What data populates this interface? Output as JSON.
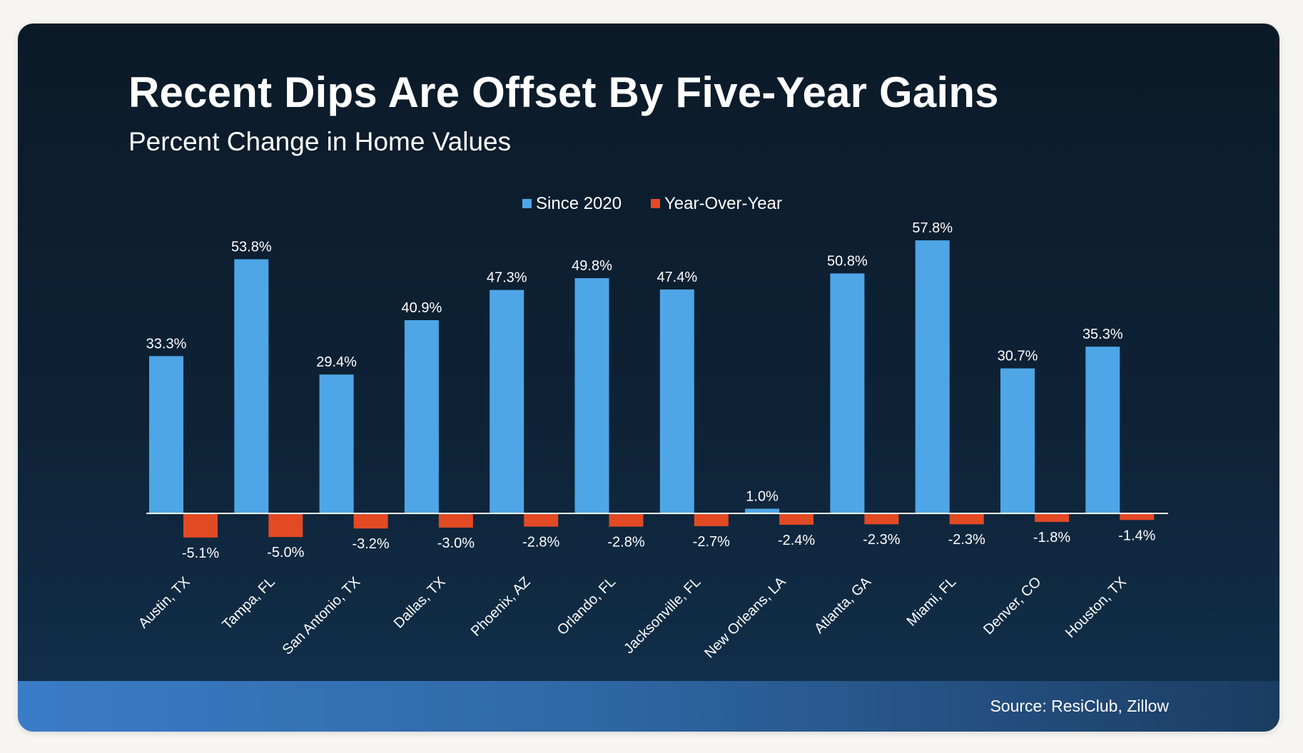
{
  "header": {
    "title": "Recent Dips Are Offset By Five-Year Gains",
    "subtitle": "Percent Change in Home Values"
  },
  "footer": {
    "source": "Source: ResiClub, Zillow"
  },
  "colors": {
    "since_2020": "#4ea6e6",
    "year_over_year": "#e24a24",
    "baseline": "#ffffff",
    "label_text": "#ffffff"
  },
  "chart_data": {
    "type": "bar",
    "title": "Recent Dips Are Offset By Five-Year Gains",
    "subtitle": "Percent Change in Home Values",
    "xlabel": "",
    "ylabel": "",
    "grid": false,
    "legend_position": "top-center",
    "categories": [
      "Austin, TX",
      "Tampa, FL",
      "San Antonio, TX",
      "Dallas, TX",
      "Phoenix, AZ",
      "Orlando, FL",
      "Jacksonville, FL",
      "New Orleans, LA",
      "Atlanta, GA",
      "Miami, FL",
      "Denver, CO",
      "Houston, TX"
    ],
    "series": [
      {
        "name": "Since 2020",
        "values": [
          33.3,
          53.8,
          29.4,
          40.9,
          47.3,
          49.8,
          47.4,
          1.0,
          50.8,
          57.8,
          30.7,
          35.3
        ],
        "labels": [
          "33.3%",
          "53.8%",
          "29.4%",
          "40.9%",
          "47.3%",
          "49.8%",
          "47.4%",
          "1.0%",
          "50.8%",
          "57.8%",
          "30.7%",
          "35.3%"
        ]
      },
      {
        "name": "Year-Over-Year",
        "values": [
          -5.1,
          -5.0,
          -3.2,
          -3.0,
          -2.8,
          -2.8,
          -2.7,
          -2.4,
          -2.3,
          -2.3,
          -1.8,
          -1.4
        ],
        "labels": [
          "-5.1%",
          "-5.0%",
          "-3.2%",
          "-3.0%",
          "-2.8%",
          "-2.8%",
          "-2.7%",
          "-2.4%",
          "-2.3%",
          "-2.3%",
          "-1.8%",
          "-1.4%"
        ]
      }
    ]
  }
}
